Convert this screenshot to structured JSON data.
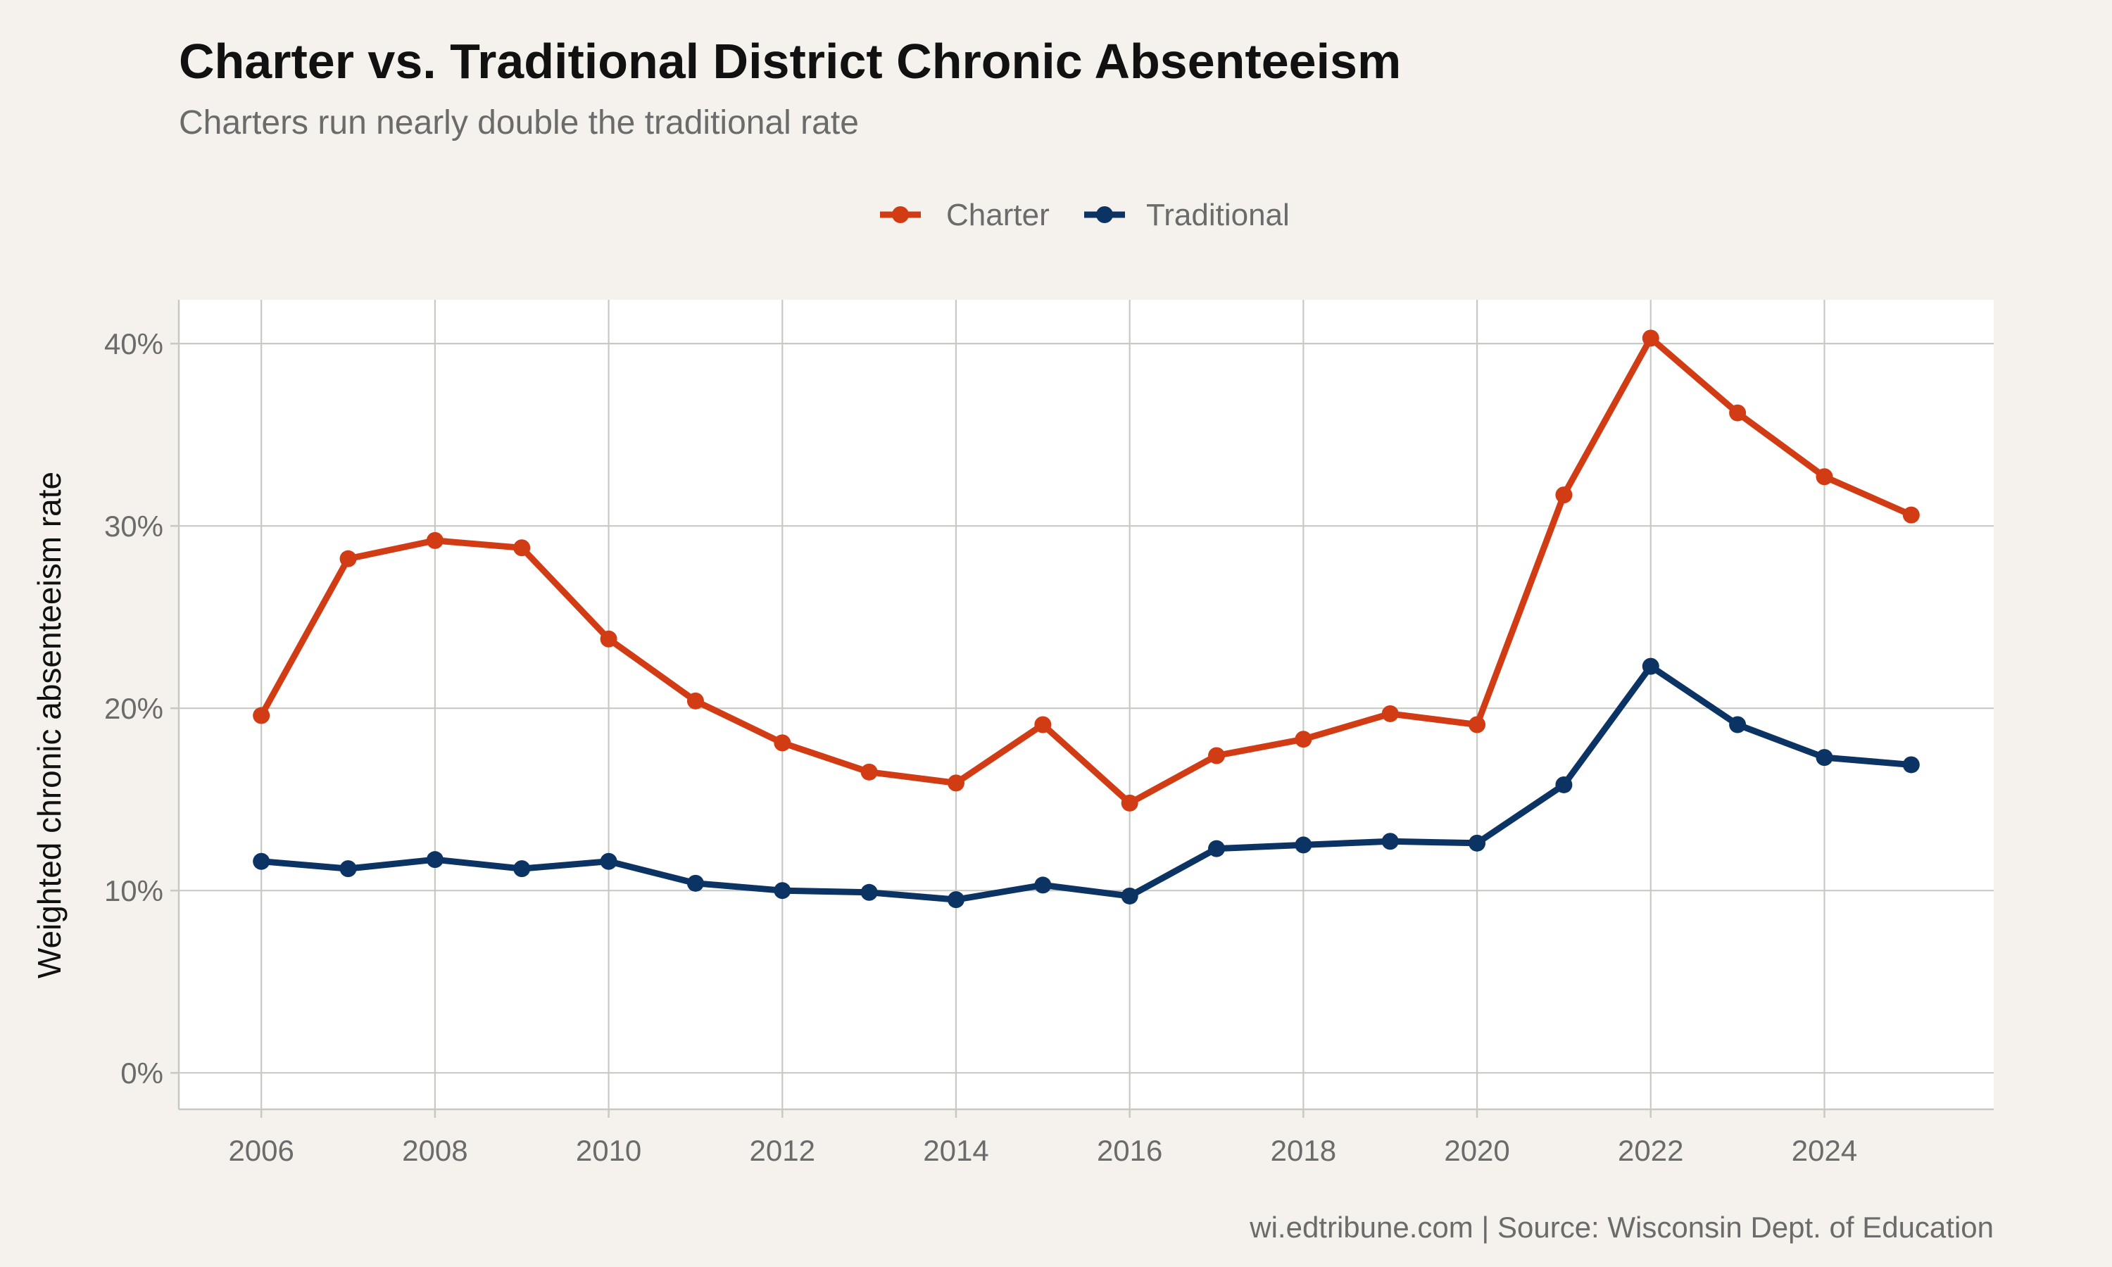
{
  "chart_data": {
    "type": "line",
    "title": "Charter vs. Traditional District Chronic Absenteeism",
    "subtitle": "Charters run nearly double the traditional rate",
    "caption": "wi.edtribune.com | Source: Wisconsin Dept. of Education",
    "xlabel": "",
    "ylabel": "Weighted chronic absenteeism rate",
    "x": [
      2006,
      2007,
      2008,
      2009,
      2010,
      2011,
      2012,
      2013,
      2014,
      2015,
      2016,
      2017,
      2018,
      2019,
      2020,
      2021,
      2022,
      2023,
      2024,
      2025
    ],
    "series": [
      {
        "name": "Charter",
        "color": "#d13c14",
        "values": [
          19.6,
          28.2,
          29.2,
          28.8,
          23.8,
          20.4,
          18.1,
          16.5,
          15.9,
          19.1,
          14.8,
          17.4,
          18.3,
          19.7,
          19.1,
          31.7,
          40.3,
          36.2,
          32.7,
          30.6
        ]
      },
      {
        "name": "Traditional",
        "color": "#0b3363",
        "values": [
          11.6,
          11.2,
          11.7,
          11.2,
          11.6,
          10.4,
          10.0,
          9.9,
          9.5,
          10.3,
          9.7,
          12.3,
          12.5,
          12.7,
          12.6,
          15.8,
          22.3,
          19.1,
          17.3,
          16.9
        ]
      }
    ],
    "xlim": [
      2005.05,
      2025.95
    ],
    "ylim": [
      -2,
      42.4
    ],
    "x_ticks": [
      2006,
      2008,
      2010,
      2012,
      2014,
      2016,
      2018,
      2020,
      2022,
      2024
    ],
    "x_tick_labels": [
      "2006",
      "2008",
      "2010",
      "2012",
      "2014",
      "2016",
      "2018",
      "2020",
      "2022",
      "2024"
    ],
    "y_ticks": [
      0,
      10,
      20,
      30,
      40
    ],
    "y_tick_labels": [
      "0%",
      "10%",
      "20%",
      "30%",
      "40%"
    ],
    "grid": true,
    "legend_position": "top-center",
    "panel_background": "#ffffff",
    "page_background": "#f5f2ee",
    "grid_color": "#c9c9c4"
  }
}
